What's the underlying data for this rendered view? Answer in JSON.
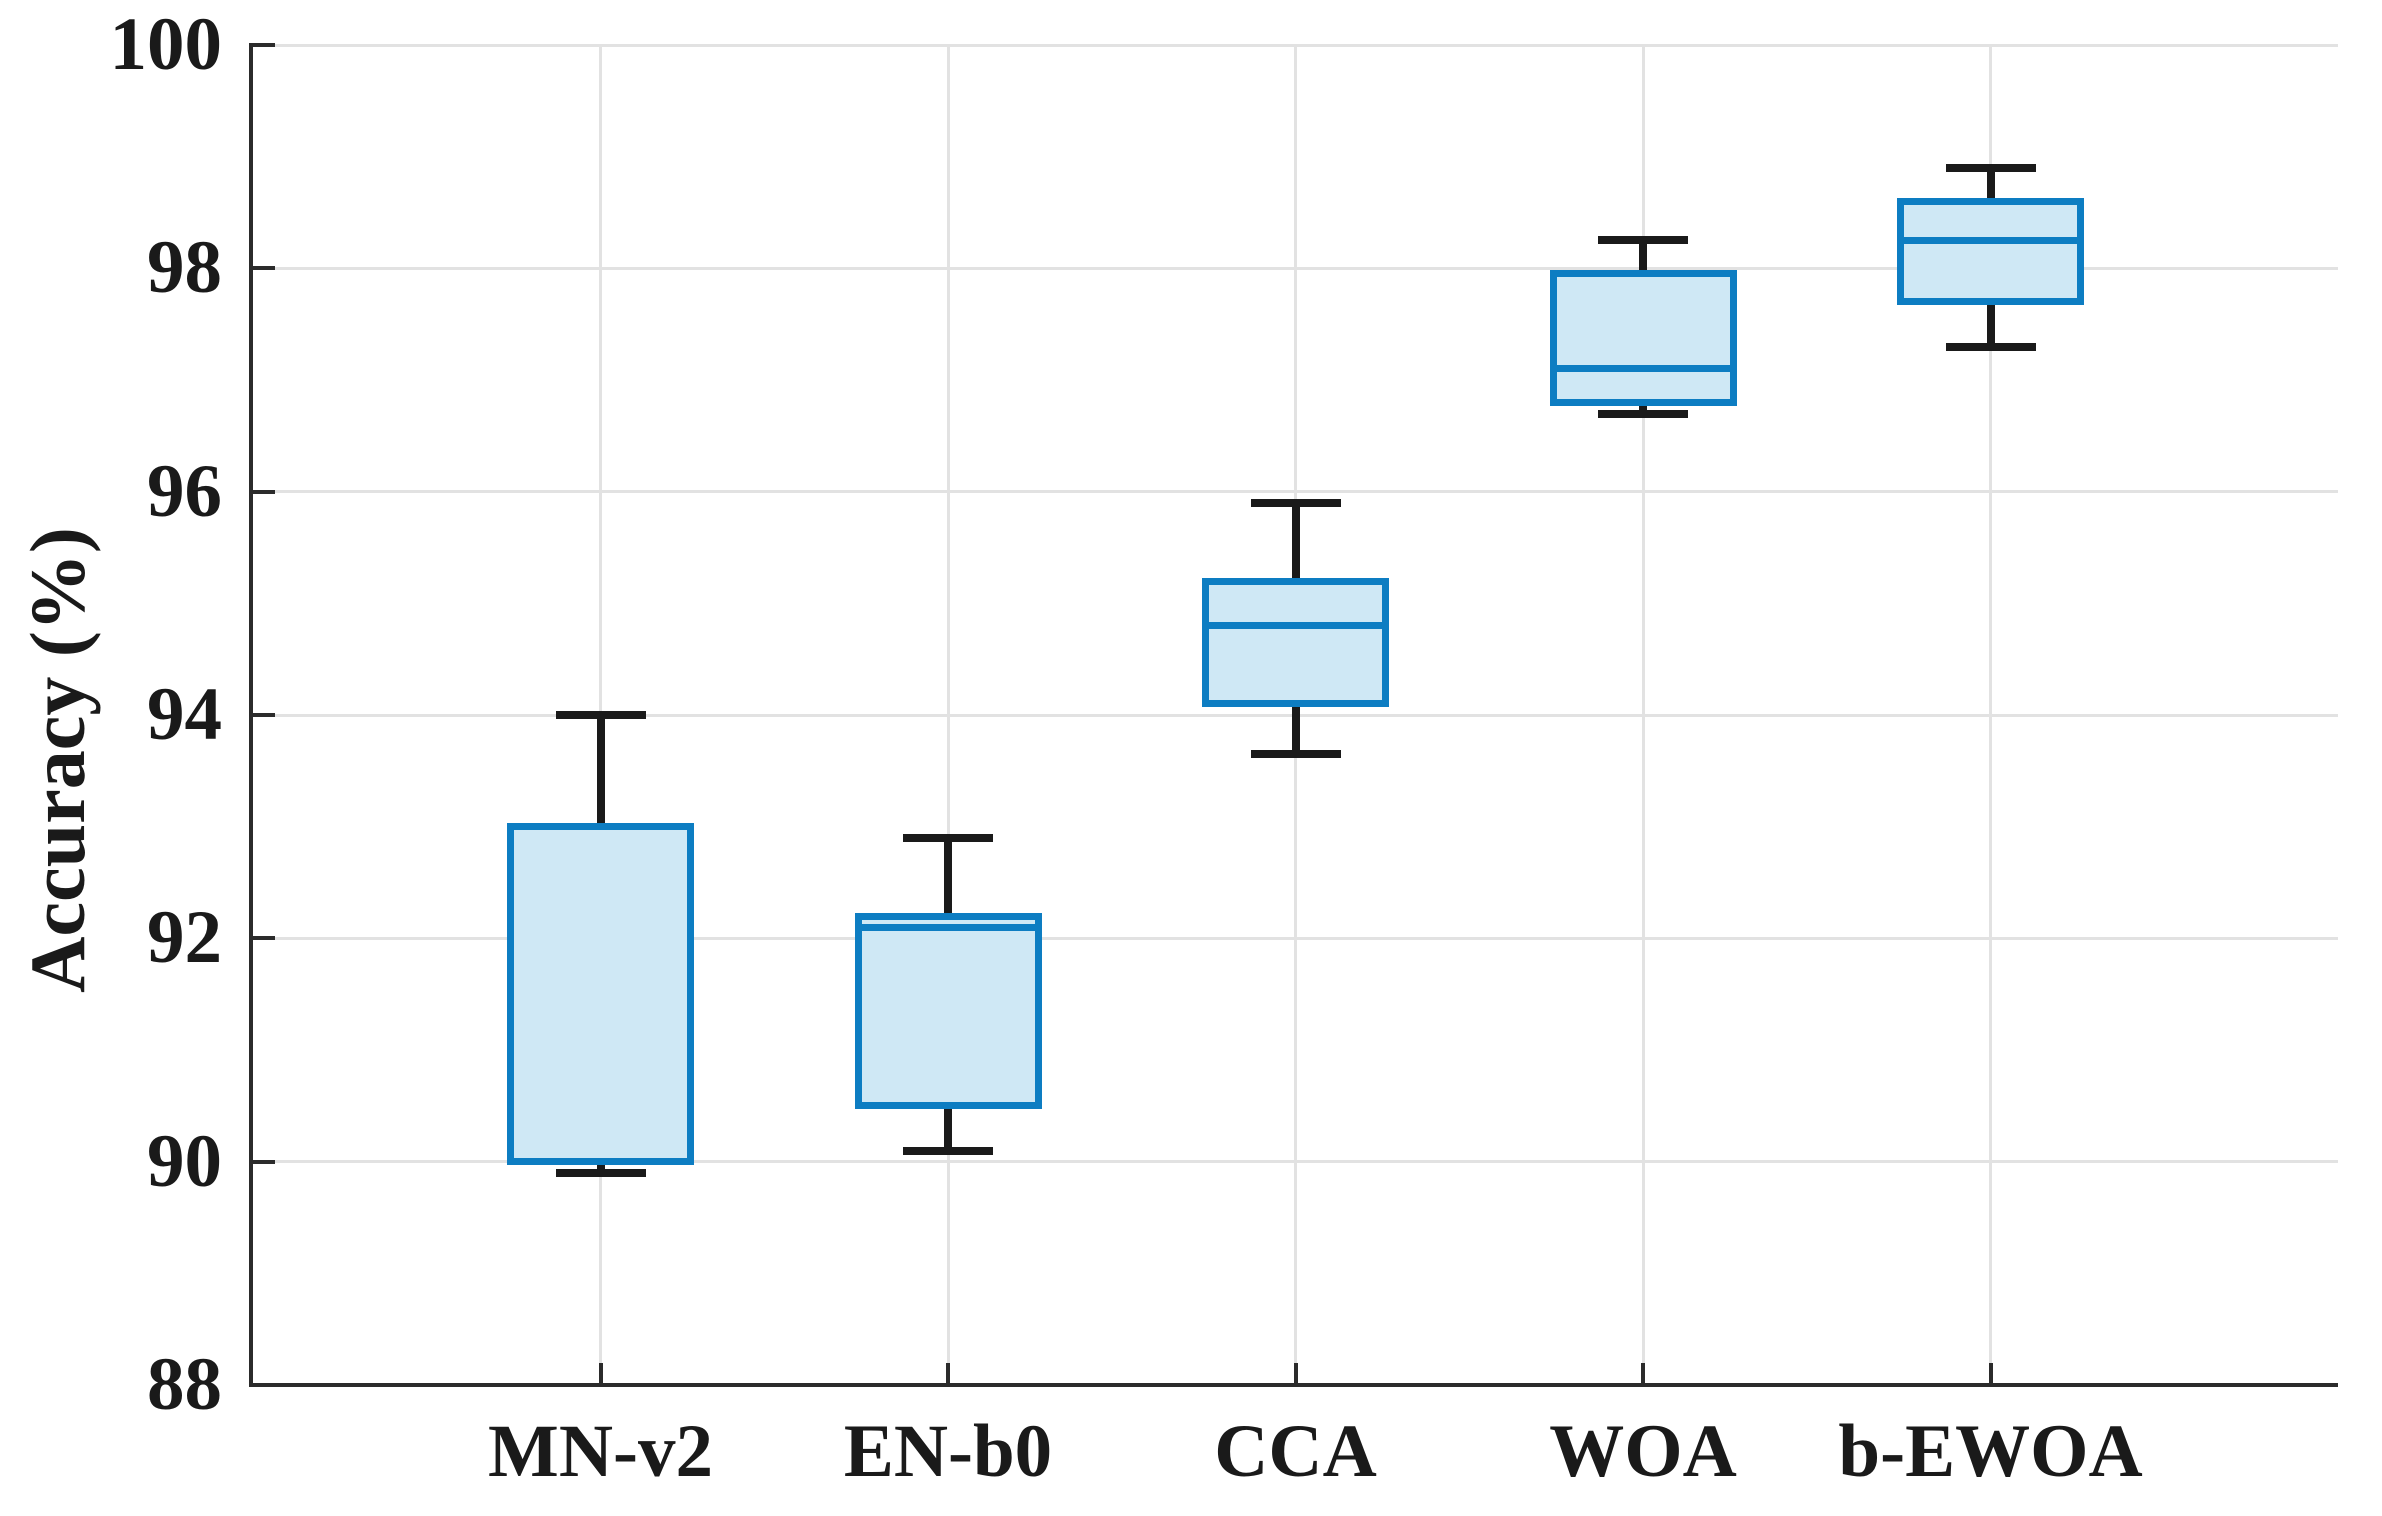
{
  "chart_data": {
    "type": "boxplot",
    "title": "",
    "ylabel": "Accuracy (%)",
    "xlabel": "",
    "ylim": [
      88,
      100
    ],
    "yticks": [
      88,
      90,
      92,
      94,
      96,
      98,
      100
    ],
    "grid": true,
    "legend_position": "none",
    "categories": [
      "MN-v2",
      "EN-b0",
      "CCA",
      "WOA",
      "b-EWOA"
    ],
    "series": [
      {
        "name": "MN-v2",
        "whisker_low": 89.9,
        "q1": 90.0,
        "median": 90.0,
        "q3": 93.0,
        "whisker_high": 94.0
      },
      {
        "name": "EN-b0",
        "whisker_low": 90.1,
        "q1": 90.5,
        "median": 92.1,
        "q3": 92.2,
        "whisker_high": 92.9
      },
      {
        "name": "CCA",
        "whisker_low": 93.65,
        "q1": 94.1,
        "median": 94.8,
        "q3": 95.2,
        "whisker_high": 95.9
      },
      {
        "name": "WOA",
        "whisker_low": 96.7,
        "q1": 96.8,
        "median": 97.1,
        "q3": 97.95,
        "whisker_high": 98.25
      },
      {
        "name": "b-EWOA",
        "whisker_low": 97.3,
        "q1": 97.7,
        "median": 98.25,
        "q3": 98.6,
        "whisker_high": 98.9
      }
    ],
    "colors": {
      "box_border": "#0d7dc2",
      "box_fill": "#cfe8f5",
      "median": "#0d7dc2",
      "whisker": "#1a1a1a",
      "grid": "#e2e2e2",
      "axis": "#2b2b2b",
      "text": "#1a1a1a"
    }
  }
}
